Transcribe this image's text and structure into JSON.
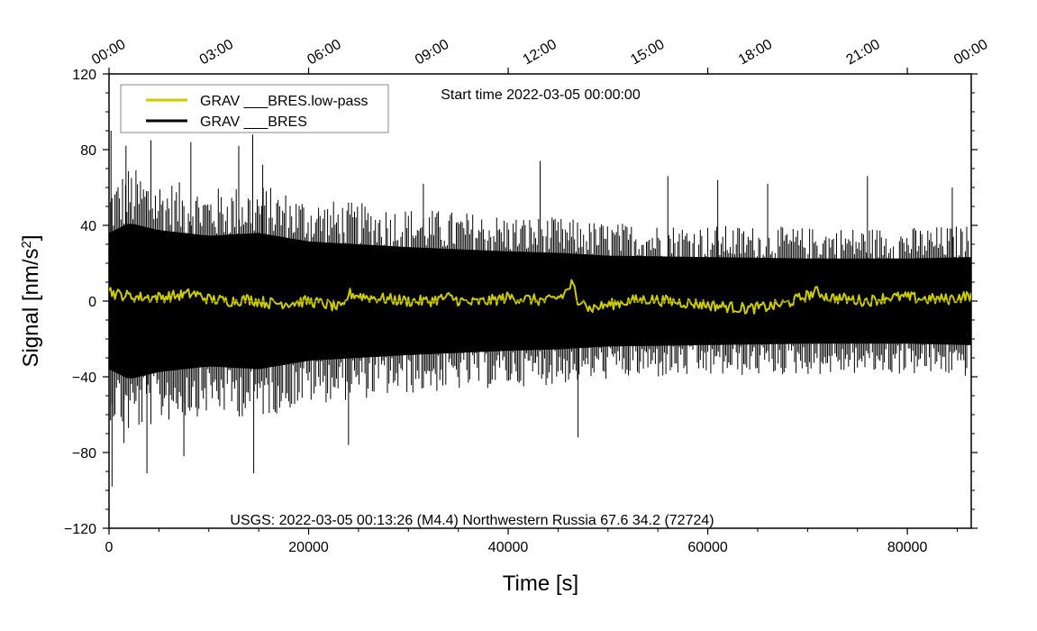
{
  "chart_data": {
    "type": "line",
    "title": "Start time 2022-03-05 00:00:00",
    "xlabel": "Time [s]",
    "ylabel": "Signal [nm/s",
    "ylabel_sup": "2",
    "ylabel_close": "]",
    "xlim": [
      0,
      86400
    ],
    "ylim": [
      -120,
      120
    ],
    "x_ticks": [
      0,
      20000,
      40000,
      60000,
      80000
    ],
    "x_tick_labels": [
      "0",
      "20000",
      "40000",
      "60000",
      "80000"
    ],
    "y_ticks": [
      -120,
      -80,
      -40,
      0,
      40,
      80,
      120
    ],
    "y_tick_labels": [
      "−120",
      "−80",
      "−40",
      "0",
      "40",
      "80",
      "120"
    ],
    "top_axis": {
      "tick_seconds": [
        0,
        10800,
        21600,
        32400,
        43200,
        54000,
        64800,
        75600,
        86400
      ],
      "tick_labels": [
        "00:00",
        "03:00",
        "06:00",
        "09:00",
        "12:00",
        "15:00",
        "18:00",
        "21:00",
        "00:00"
      ]
    },
    "legend": {
      "position": "top-left",
      "entries": [
        {
          "name": "GRAV ___BRES.low-pass",
          "color": "#cccc00"
        },
        {
          "name": "GRAV ___BRES",
          "color": "#000000"
        }
      ]
    },
    "annotation": "USGS: 2022-03-05 00:13:26 (M4.4) Northwestern Russia 67.6 34.2 (72724)",
    "series": [
      {
        "name": "GRAV ___BRES",
        "color": "#000000",
        "kind": "noise-envelope",
        "x_step": 600,
        "envelope_x": [
          0,
          2000,
          5000,
          10000,
          15000,
          20000,
          30000,
          40000,
          45000,
          50000,
          60000,
          70000,
          80000,
          86400
        ],
        "envelope_amp": [
          48,
          55,
          50,
          46,
          48,
          42,
          38,
          35,
          34,
          32,
          31,
          30,
          30,
          31
        ],
        "spikes": [
          {
            "x": 200,
            "y": 90
          },
          {
            "x": 300,
            "y": -98
          },
          {
            "x": 1500,
            "y": -75
          },
          {
            "x": 1700,
            "y": 82
          },
          {
            "x": 3800,
            "y": -91
          },
          {
            "x": 4200,
            "y": 85
          },
          {
            "x": 7500,
            "y": -82
          },
          {
            "x": 8200,
            "y": 84
          },
          {
            "x": 13000,
            "y": 82
          },
          {
            "x": 14400,
            "y": 88
          },
          {
            "x": 14500,
            "y": -91
          },
          {
            "x": 15400,
            "y": 72
          },
          {
            "x": 24000,
            "y": -76
          },
          {
            "x": 31500,
            "y": 62
          },
          {
            "x": 43200,
            "y": 74
          },
          {
            "x": 47000,
            "y": -72
          },
          {
            "x": 56000,
            "y": 66
          },
          {
            "x": 61000,
            "y": 64
          },
          {
            "x": 66000,
            "y": 62
          },
          {
            "x": 76000,
            "y": 66
          },
          {
            "x": 84500,
            "y": 60
          }
        ]
      },
      {
        "name": "GRAV ___BRES.low-pass",
        "color": "#cccc00",
        "kind": "line",
        "x": [
          0,
          500,
          1500,
          3000,
          5000,
          7000,
          8500,
          10000,
          12000,
          14000,
          16000,
          18000,
          20000,
          22000,
          23500,
          24000,
          26000,
          28000,
          30000,
          32000,
          34000,
          36000,
          38000,
          40000,
          42000,
          44000,
          45500,
          46500,
          47000,
          47500,
          48000,
          50000,
          52000,
          54000,
          56000,
          58000,
          60000,
          62000,
          64000,
          66000,
          68000,
          70000,
          71000,
          72000,
          74000,
          76000,
          78000,
          80000,
          82000,
          84000,
          86400
        ],
        "y": [
          6,
          4,
          3,
          2,
          2,
          3,
          4,
          1,
          0,
          1,
          -1,
          -1,
          0,
          -2,
          -4,
          4,
          2,
          1,
          0,
          0,
          2,
          -1,
          0,
          2,
          1,
          0,
          3,
          10,
          -5,
          4,
          -4,
          -2,
          0,
          1,
          0,
          -1,
          -2,
          -3,
          -4,
          -3,
          -1,
          3,
          5,
          2,
          1,
          0,
          2,
          2,
          1,
          1,
          3
        ]
      }
    ]
  }
}
